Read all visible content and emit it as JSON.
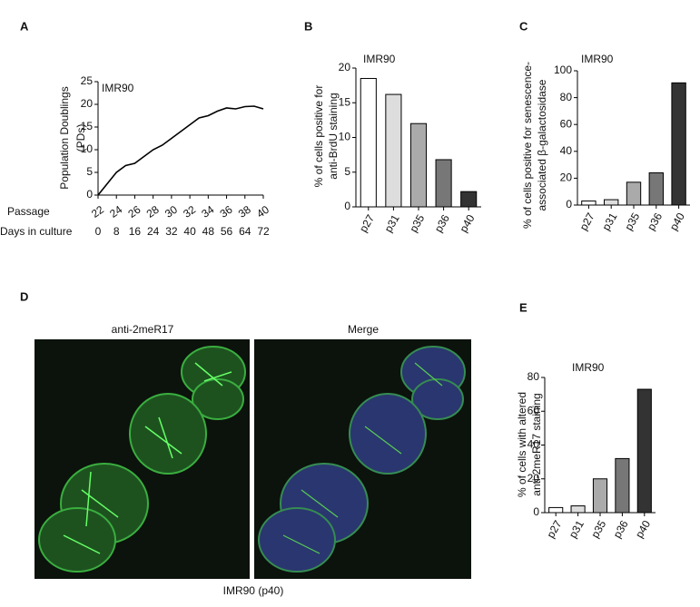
{
  "panel_labels": [
    "A",
    "B",
    "C",
    "D",
    "E"
  ],
  "chart_data": [
    {
      "type": "line",
      "title": "IMR90",
      "ylabel": [
        "Population Doublings",
        "(PDs)"
      ],
      "xlabel": "Passage",
      "x2label": "Days in culture",
      "x": [
        22,
        23,
        24,
        25,
        26,
        27,
        28,
        29,
        30,
        31,
        32,
        33,
        34,
        35,
        36,
        37,
        38,
        39,
        40
      ],
      "values": [
        0,
        2.5,
        5,
        6.5,
        7,
        8.5,
        10,
        11,
        12.5,
        14,
        15.5,
        17,
        17.5,
        18.5,
        19.2,
        19,
        19.5,
        19.6,
        19
      ],
      "color": "#000000",
      "xlim": [
        22,
        40
      ],
      "xticks": [
        22,
        24,
        26,
        28,
        30,
        32,
        34,
        36,
        38,
        40
      ],
      "x2ticks": [
        0,
        8,
        16,
        24,
        32,
        40,
        48,
        56,
        64,
        72
      ],
      "ylim": [
        0,
        25
      ],
      "yticks": [
        0,
        5,
        10,
        15,
        20,
        25
      ]
    },
    {
      "type": "bar",
      "title": "IMR90",
      "ylabel": [
        "% of cells positive for",
        "anti-BrdU staining"
      ],
      "categories": [
        "p27",
        "p31",
        "p35",
        "p36",
        "p40"
      ],
      "values": [
        18.5,
        16.2,
        12,
        6.8,
        2.2
      ],
      "colors": [
        "#ffffff",
        "#dddddd",
        "#aaaaaa",
        "#777777",
        "#333333"
      ],
      "ylim": [
        0,
        20
      ],
      "yticks": [
        0,
        5,
        10,
        15,
        20
      ]
    },
    {
      "type": "bar",
      "title": "IMR90",
      "ylabel": [
        "% of cells positive for senescence-",
        "associated β-galactosidase"
      ],
      "categories": [
        "p27",
        "p31",
        "p35",
        "p36",
        "p40"
      ],
      "values": [
        3,
        4,
        17,
        24,
        91
      ],
      "colors": [
        "#ffffff",
        "#dddddd",
        "#aaaaaa",
        "#777777",
        "#333333"
      ],
      "ylim": [
        0,
        100
      ],
      "yticks": [
        0,
        20,
        40,
        60,
        80,
        100
      ]
    },
    {
      "type": "bar",
      "title": "IMR90",
      "ylabel": [
        "% of cells with altered",
        "anti-2meR17 staining"
      ],
      "categories": [
        "p27",
        "p31",
        "p35",
        "p36",
        "p40"
      ],
      "values": [
        3,
        4,
        20,
        32,
        73
      ],
      "colors": [
        "#ffffff",
        "#dddddd",
        "#aaaaaa",
        "#777777",
        "#333333"
      ],
      "ylim": [
        0,
        80
      ],
      "yticks": [
        0,
        20,
        40,
        60,
        80
      ]
    }
  ],
  "images": {
    "left_label": "anti-2meR17",
    "right_label": "Merge",
    "caption": "IMR90 (p40)"
  }
}
